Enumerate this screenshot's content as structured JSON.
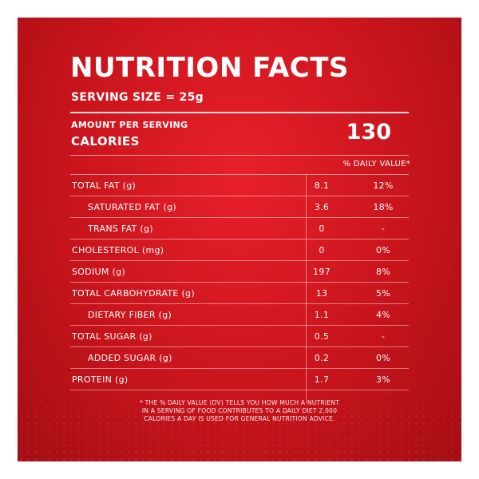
{
  "title": "NUTRITION FACTS",
  "serving_size": "SERVING SIZE = 25g",
  "amount_per_serving": "AMOUNT PER SERVING",
  "calories_label": "CALORIES",
  "calories_value": "130",
  "daily_value_header": "% DAILY VALUE*",
  "nutrients": [
    {
      "label": "TOTAL FAT (g)",
      "amount": "8.1",
      "dv": "12%"
    },
    {
      "label": "SATURATED FAT (g)",
      "amount": "3.6",
      "dv": "18%"
    },
    {
      "label": "TRANS FAT (g)",
      "amount": "0",
      "dv": "-"
    },
    {
      "label": "CHOLESTEROL (mg)",
      "amount": "0",
      "dv": "0%"
    },
    {
      "label": "SODIUM (g)",
      "amount": "197",
      "dv": "8%"
    },
    {
      "label": "TOTAL CARBOHYDRATE (g)",
      "amount": "13",
      "dv": "5%"
    },
    {
      "label": "DIETARY FIBER (g)",
      "amount": "1.1",
      "dv": "4%"
    },
    {
      "label": "TOTAL SUGAR (g)",
      "amount": "0.5",
      "dv": "-"
    },
    {
      "label": "ADDED SUGAR (g)",
      "amount": "0.2",
      "dv": "0%"
    },
    {
      "label": "PROTEIN (g)",
      "amount": "1.7",
      "dv": "3%"
    }
  ],
  "footnote_lines": [
    "* THE % DAILY VALUE (DV) TELLS YOU HOW MUCH A NUTRIENT",
    "IN A SERVING OF FOOD CONTRIBUTES TO A DAILY DIET 2,000",
    "CALORIES A DAY IS USED FOR GENERAL NUTRITION ADVICE."
  ],
  "colors": {
    "background": "#c8141c",
    "text": "#ffffff"
  }
}
